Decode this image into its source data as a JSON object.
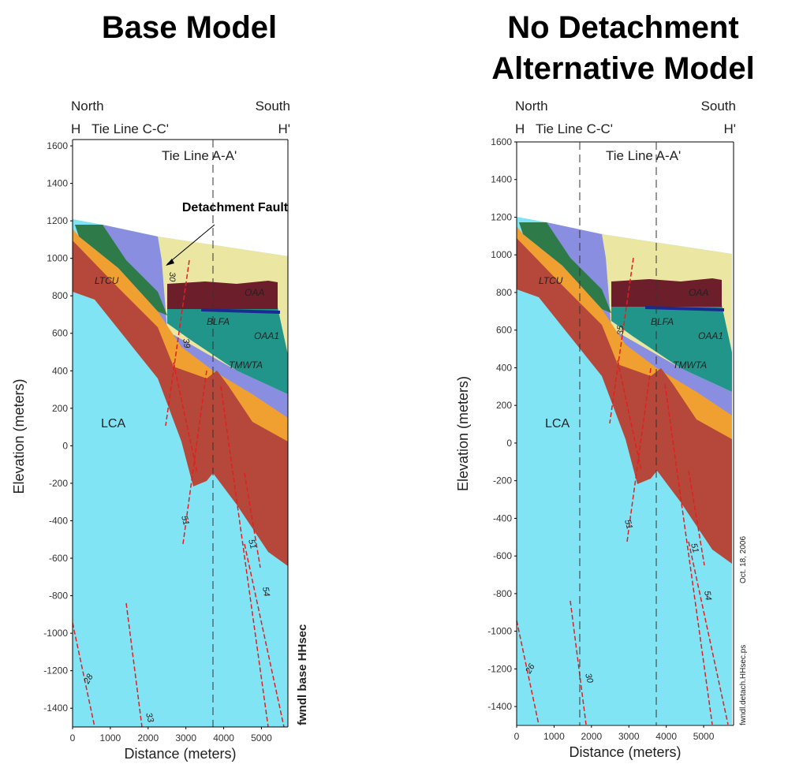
{
  "panels": [
    {
      "title_lines": [
        "Base Model"
      ],
      "north": "North",
      "south": "South",
      "h": "H",
      "h_prime": "H'",
      "tie_line_1": "Tie Line C-C'",
      "tie_line_2": "Tie Line A-A'",
      "annotation": "Detachment Fault",
      "units": [
        "LTCU",
        "OAA",
        "BLFA",
        "OAA1",
        "TMWTA",
        "LCA"
      ],
      "dips": [
        "30",
        "39",
        "51",
        "51",
        "54",
        "28",
        "33"
      ],
      "side_texts": [
        "fwndl base HHsec"
      ],
      "y_label": "Elevation (meters)",
      "x_label": "Distance (meters)",
      "xlim": [
        0,
        5700
      ],
      "xticks": [
        0,
        1000,
        2000,
        3000,
        4000,
        5000
      ],
      "ylim": [
        -1500,
        1600
      ],
      "yticks": [
        1600,
        1400,
        1200,
        1000,
        800,
        600,
        400,
        200,
        0,
        -200,
        -400,
        -600,
        -800,
        -1000,
        -1200,
        -1400
      ]
    },
    {
      "title_lines": [
        "No Detachment",
        "Alternative Model"
      ],
      "north": "North",
      "south": "South",
      "h": "H",
      "h_prime": "H'",
      "tie_line_1": "Tie Line C-C'",
      "tie_line_2": "Tie Line A-A'",
      "units": [
        "LTCU",
        "OAA",
        "BLFA",
        "OAA1",
        "TMWTA",
        "LCA"
      ],
      "dips": [
        "35",
        "51",
        "51",
        "54",
        "26",
        "30"
      ],
      "side_texts": [
        "Oct. 18, 2006",
        "fwndl.detach.HHsec.ps"
      ],
      "y_label": "Elevation (meters)",
      "x_label": "Distance (meters)",
      "xlim": [
        0,
        5800
      ],
      "xticks": [
        0,
        1000,
        2000,
        3000,
        4000,
        5000
      ],
      "ylim": [
        -1500,
        1600
      ],
      "yticks": [
        1600,
        1400,
        1200,
        1000,
        800,
        600,
        400,
        200,
        0,
        -200,
        -400,
        -600,
        -800,
        -1000,
        -1200,
        -1400
      ]
    }
  ]
}
